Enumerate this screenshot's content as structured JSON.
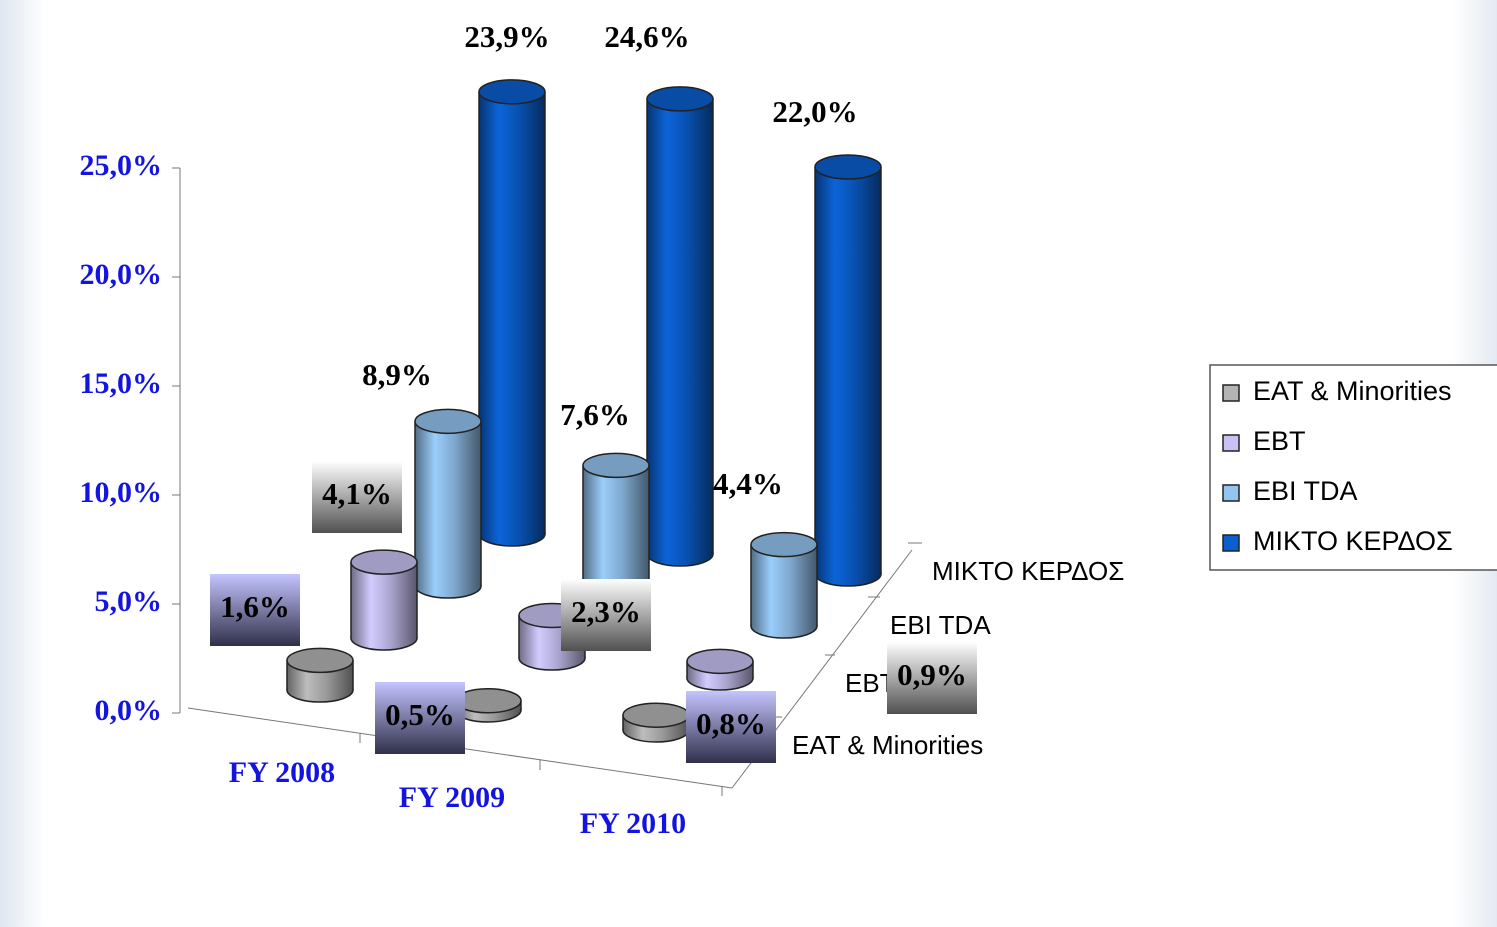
{
  "chart_data": {
    "type": "bar3d",
    "categories": [
      "FY 2008",
      "FY 2009",
      "FY 2010"
    ],
    "series": [
      {
        "name": "EAT & Minorities",
        "color": "#b4b4b4",
        "values": [
          1.6,
          0.5,
          0.8
        ],
        "value_labels": [
          "1,6%",
          "0,5%",
          "0,8%"
        ]
      },
      {
        "name": "EBT",
        "color": "#c8c2f2",
        "values": [
          4.1,
          2.3,
          0.9
        ],
        "value_labels": [
          "4,1%",
          "2,3%",
          "0,9%"
        ]
      },
      {
        "name": "EBI TDA",
        "color": "#94c4f0",
        "values": [
          8.9,
          7.6,
          4.4
        ],
        "value_labels": [
          "8,9%",
          "7,6%",
          "4,4%"
        ]
      },
      {
        "name": "ΜΙΚΤΟ ΚΕΡΔΟΣ",
        "color": "#0b5fcf",
        "values": [
          23.9,
          24.6,
          22.0
        ],
        "value_labels": [
          "23,9%",
          "24,6%",
          "22,0%"
        ]
      }
    ],
    "ylim": [
      0,
      25
    ],
    "yticks": [
      {
        "value": 0,
        "label": "0,0%"
      },
      {
        "value": 5,
        "label": "5,0%"
      },
      {
        "value": 10,
        "label": "10,0%"
      },
      {
        "value": 15,
        "label": "15,0%"
      },
      {
        "value": 20,
        "label": "20,0%"
      },
      {
        "value": 25,
        "label": "25,0%"
      }
    ],
    "legend": "right"
  }
}
